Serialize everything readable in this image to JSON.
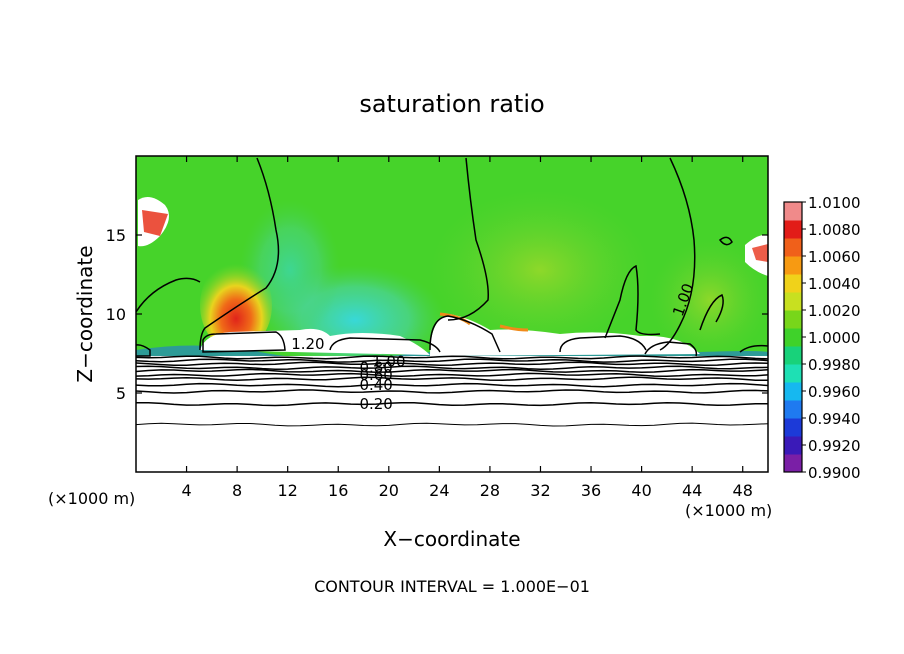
{
  "chart_data": {
    "type": "heatmap",
    "title": "saturation ratio",
    "xlabel": "X−coordinate",
    "ylabel": "Z−coordinate",
    "x_unit_left": "(×1000 m)",
    "x_unit_right": "(×1000 m)",
    "xlim": [
      0,
      50
    ],
    "ylim": [
      0,
      20
    ],
    "x_ticks": [
      4,
      8,
      12,
      16,
      20,
      24,
      28,
      32,
      36,
      40,
      44,
      48
    ],
    "y_ticks": [
      5,
      10,
      15
    ],
    "footer": "CONTOUR INTERVAL = 1.000E−01",
    "colorbar": {
      "range": [
        0.99,
        1.01
      ],
      "tick_labels": [
        "1.0100",
        "1.0080",
        "1.0060",
        "1.0040",
        "1.0020",
        "1.0000",
        "0.9980",
        "0.9960",
        "0.9940",
        "0.9920",
        "0.9900"
      ],
      "colors": [
        "#7a1fa6",
        "#3a1ab8",
        "#1c3ad8",
        "#1f7af0",
        "#16b8f0",
        "#1ee0b4",
        "#18d27a",
        "#3fd22a",
        "#78d61a",
        "#c8e020",
        "#f0d21a",
        "#f79a12",
        "#f0601a",
        "#e21c18",
        "#f08a8a"
      ]
    },
    "contour_labels": [
      {
        "text": "0.20",
        "x": 19.0,
        "z": 4.3
      },
      {
        "text": "0.40",
        "x": 19.0,
        "z": 5.5
      },
      {
        "text": "0.60",
        "x": 19.0,
        "z": 6.15
      },
      {
        "text": "0.80",
        "x": 19.0,
        "z": 6.6
      },
      {
        "text": "1.00",
        "x": 20.0,
        "z": 7.0
      },
      {
        "text": "1.20",
        "x": 13.6,
        "z": 8.1
      },
      {
        "text": "1.00",
        "x": 43.3,
        "z": 10.9
      }
    ],
    "features": {
      "moist_region_center": {
        "x": 8.0,
        "z": 9.8
      },
      "sub_saturated_band_z": 7.5
    }
  }
}
